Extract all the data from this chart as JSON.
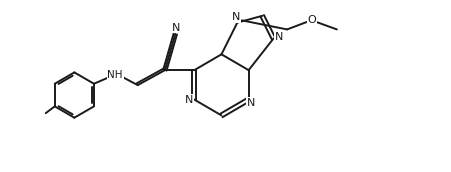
{
  "background": "#ffffff",
  "line_color": "#1a1a1a",
  "line_width": 1.4,
  "fig_width": 4.52,
  "fig_height": 1.72,
  "dpi": 100,
  "xlim": [
    0,
    90
  ],
  "ylim": [
    0,
    38
  ]
}
